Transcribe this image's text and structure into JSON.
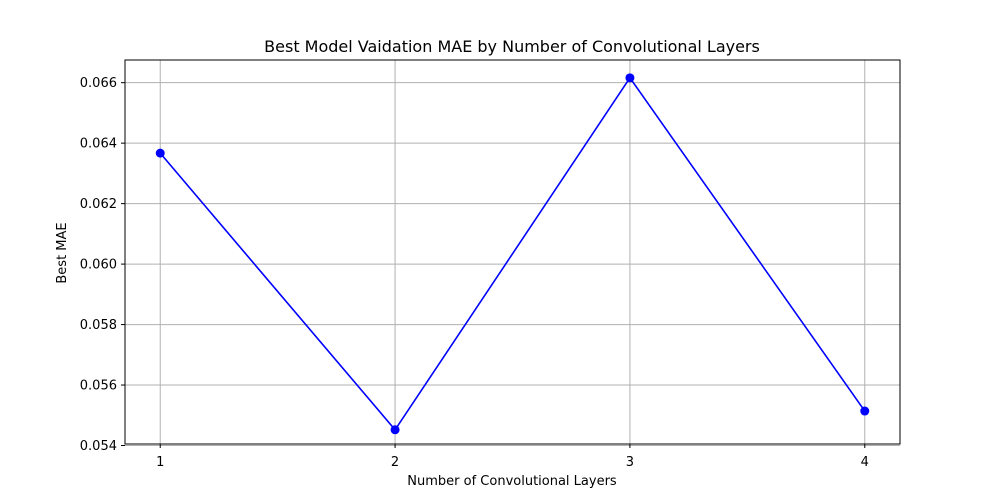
{
  "chart_data": {
    "type": "line",
    "title": "Best Model Vaidation MAE by Number of Convolutional Layers",
    "xlabel": "Number of Convolutional Layers",
    "ylabel": "Best MAE",
    "x": [
      1,
      2,
      3,
      4
    ],
    "x_tick_labels": [
      "1",
      "2",
      "3",
      "4"
    ],
    "xlim": [
      0.85,
      4.15
    ],
    "ylim": [
      0.05405,
      0.06675
    ],
    "y_ticks": [
      0.054,
      0.056,
      0.058,
      0.06,
      0.062,
      0.064,
      0.066
    ],
    "y_tick_labels": [
      "0.054",
      "0.056",
      "0.058",
      "0.060",
      "0.062",
      "0.064",
      "0.066"
    ],
    "series": [
      {
        "values": [
          0.06367,
          0.05452,
          0.06616,
          0.05514
        ],
        "color": "#0000ff",
        "marker": "circle"
      }
    ],
    "grid": true,
    "legend": "none"
  }
}
